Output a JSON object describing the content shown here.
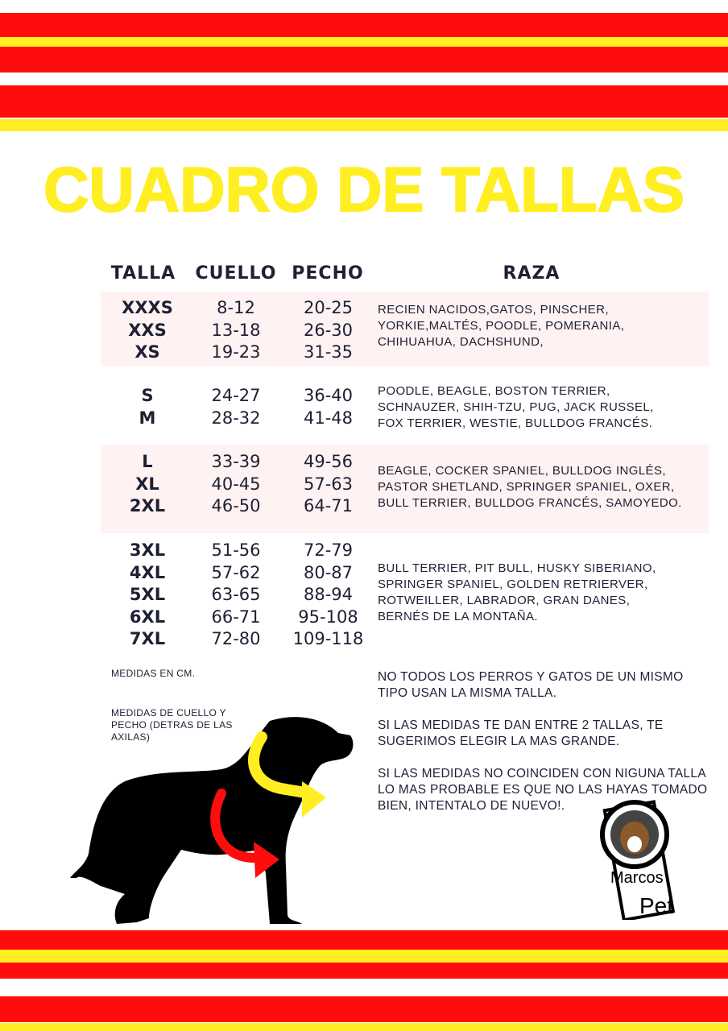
{
  "title": "CUADRO DE TALLAS",
  "colors": {
    "red": "#ff0d0d",
    "yellow": "#ffee22",
    "row_highlight": "#fff2f2",
    "text": "#1e2033"
  },
  "headers": {
    "talla": "TALLA",
    "cuello": "CUELLO",
    "pecho": "PECHO",
    "raza": "RAZA"
  },
  "groups": [
    {
      "tallas": [
        "XXXS",
        "XXS",
        "XS"
      ],
      "cuello": [
        "8-12",
        "13-18",
        "19-23"
      ],
      "pecho": [
        "20-25",
        "26-30",
        "31-35"
      ],
      "raza": [
        "RECIEN NACIDOS,GATOS, PINSCHER,",
        "YORKIE,MALTÉS, POODLE, POMERANIA,",
        "CHIHUAHUA, DACHSHUND,"
      ]
    },
    {
      "tallas": [
        "S",
        "M"
      ],
      "cuello": [
        "24-27",
        "28-32"
      ],
      "pecho": [
        "36-40",
        "41-48"
      ],
      "raza": [
        "POODLE, BEAGLE, BOSTON TERRIER,",
        "SCHNAUZER, SHIH-TZU, PUG, JACK RUSSEL,",
        "FOX TERRIER, WESTIE, BULLDOG FRANCÉS."
      ]
    },
    {
      "tallas": [
        "L",
        "XL",
        "2XL"
      ],
      "cuello": [
        "33-39",
        "40-45",
        "46-50"
      ],
      "pecho": [
        "49-56",
        "57-63",
        "64-71"
      ],
      "raza": [
        "BEAGLE, COCKER SPANIEL, BULLDOG INGLÉS,",
        "PASTOR SHETLAND, SPRINGER SPANIEL, OXER,",
        "BULL TERRIER, BULLDOG FRANCÉS, SAMOYEDO."
      ]
    },
    {
      "tallas": [
        "3XL",
        "4XL",
        "5XL",
        "6XL",
        "7XL"
      ],
      "cuello": [
        "51-56",
        "57-62",
        "63-65",
        "66-71",
        "72-80"
      ],
      "pecho": [
        "72-79",
        "80-87",
        "88-94",
        "95-108",
        "109-118"
      ],
      "raza": [
        "BULL TERRIER, PIT BULL, HUSKY SIBERIANO,",
        "SPRINGER SPANIEL, GOLDEN RETRIERVER,",
        "ROTWEILLER, LABRADOR, GRAN DANES,",
        "BERNÉS DE LA MONTAÑA."
      ]
    }
  ],
  "notes": {
    "units": "MEDIDAS EN CM.",
    "measure": "MEDIDAS DE CUELLO Y PECHO (DETRAS DE LAS AXILAS)"
  },
  "tips": [
    "NO TODOS LOS PERROS Y GATOS DE UN MISMO TIPO USAN LA MISMA TALLA.",
    "SI LAS MEDIDAS TE DAN ENTRE 2 TALLAS, TE SUGERIMOS ELEGIR LA MAS GRANDE.",
    "SI LAS MEDIDAS NO COINCIDEN CON NIGUNA TALLA LO MAS PROBABLE ES QUE NO LAS HAYAS TOMADO BIEN, INTENTALO DE NUEVO!."
  ],
  "logo": {
    "text": "Marcos Pet"
  }
}
